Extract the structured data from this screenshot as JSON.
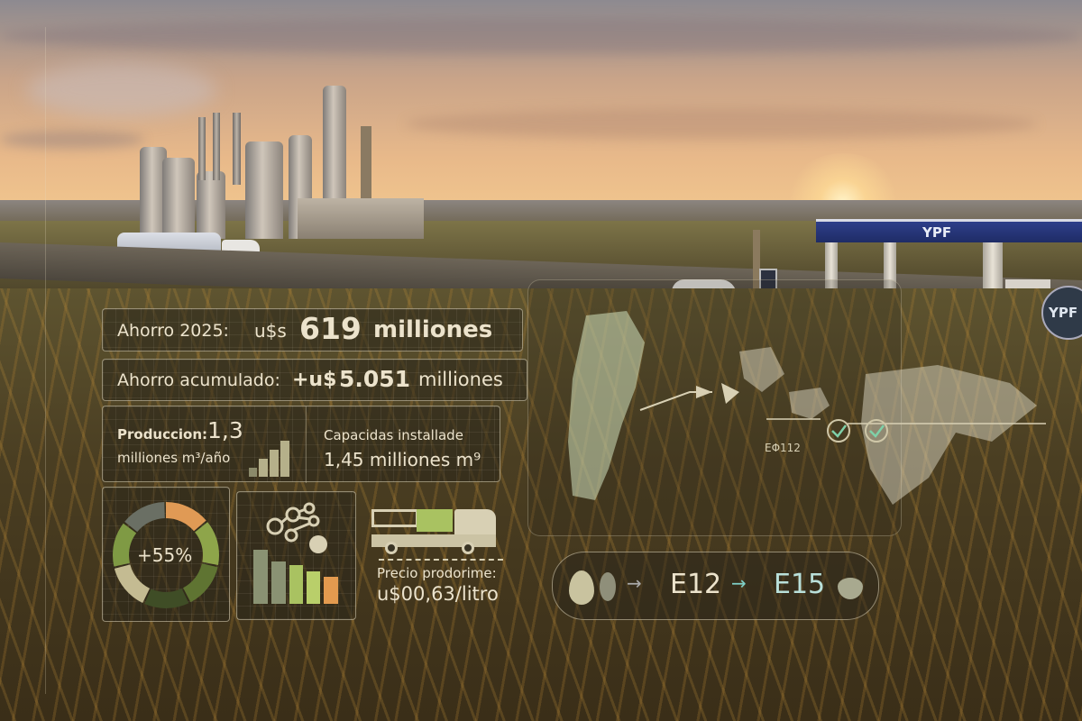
{
  "scene": {
    "brand_canopy": "YPF",
    "brand_sign": "YPF"
  },
  "stats": {
    "savings_2025": {
      "label": "Ahorro 2025:",
      "currency": "u$s",
      "value": "619",
      "unit": "milliones"
    },
    "savings_accumulated": {
      "label": "Ahorro acumulado:",
      "currency": "+u$",
      "value": "5.051",
      "unit": "milliones"
    },
    "production": {
      "label": "Produccion:",
      "value": "1,3",
      "unit": "milliones m³/año"
    },
    "capacity": {
      "label": "Capacidas installade",
      "value": "1,45 milliones m⁹"
    },
    "donut": {
      "label": "+55%",
      "segments": [
        {
          "color": "#e09a55"
        },
        {
          "color": "#8ea54a"
        },
        {
          "color": "#5f7432"
        },
        {
          "color": "#3f4d26"
        },
        {
          "color": "#c4bb92"
        },
        {
          "color": "#7f9a44"
        },
        {
          "color": "#6a6f64"
        }
      ]
    },
    "price": {
      "label": "Precio prodorime:",
      "currency": "u$",
      "value": "00,63/litro"
    }
  },
  "map": {
    "label": "EΦ112"
  },
  "blend": {
    "from": "E12",
    "to": "E15"
  },
  "colors": {
    "accent_green": "#a6c35a",
    "accent_orange": "#e39a4f",
    "text": "#ece3cc",
    "teal": "#7fd0c8"
  }
}
